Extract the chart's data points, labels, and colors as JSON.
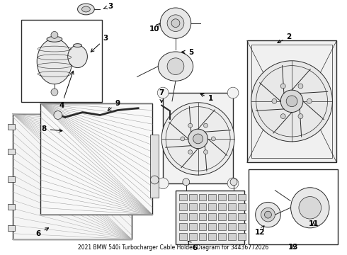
{
  "title": "2021 BMW 540i Turbocharger Cable Holder Diagram for 34436772026",
  "bg_color": "#ffffff",
  "line_color": "#2a2a2a",
  "text_color": "#000000",
  "fig_width": 4.9,
  "fig_height": 3.6,
  "dpi": 100
}
